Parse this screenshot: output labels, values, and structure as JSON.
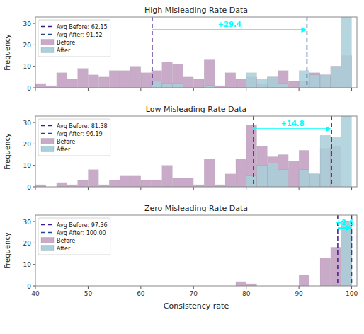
{
  "chart_data": [
    {
      "type": "histogram",
      "title": "High Misleading Rate Data",
      "bins": [
        40,
        42,
        44,
        46,
        48,
        50,
        52,
        54,
        56,
        58,
        60,
        62,
        64,
        66,
        68,
        70,
        72,
        74,
        76,
        78,
        80,
        82,
        84,
        86,
        88,
        90,
        92,
        94,
        96,
        98,
        100
      ],
      "series": [
        {
          "name": "Before",
          "color": "#c9aac9",
          "values": [
            2,
            1,
            7,
            4,
            9,
            6,
            5,
            8,
            8,
            10,
            7,
            8,
            12,
            11,
            5,
            4,
            13,
            1,
            7,
            4,
            5,
            2,
            5,
            8,
            3,
            3,
            7,
            6,
            10,
            15
          ]
        },
        {
          "name": "After",
          "color": "#aad0da",
          "values": [
            0,
            0,
            0,
            0,
            0,
            0,
            0,
            0,
            0,
            0,
            0,
            3,
            2,
            2,
            0,
            0,
            1,
            0,
            0,
            0,
            7,
            4,
            5,
            2,
            0,
            8,
            6,
            6,
            10,
            33
          ]
        }
      ],
      "lines": [
        {
          "label": "Avg Before: 62.15",
          "value": 62.15,
          "color": "#3d1a8c",
          "line_style": "dashed"
        },
        {
          "label": "Avg After: 91.52",
          "value": 91.52,
          "color": "#1a4a8c",
          "line_style": "dashed"
        }
      ],
      "annotations": [
        {
          "text": "+29.4",
          "x_from": 62.15,
          "x_to": 91.52,
          "y": 27,
          "color": "cyan"
        }
      ],
      "xlim": [
        40,
        101
      ],
      "ylim": [
        0,
        33
      ],
      "xticks": [
        40,
        50,
        60,
        70,
        80,
        90,
        100
      ],
      "yticks": [
        0,
        10,
        20,
        30
      ],
      "ylabel": "Frequency",
      "legend": "upper-left",
      "tick_labels": "y"
    },
    {
      "type": "histogram",
      "title": "Low Misleading Rate Data",
      "bins": [
        40,
        42,
        44,
        46,
        48,
        50,
        52,
        54,
        56,
        58,
        60,
        62,
        64,
        66,
        68,
        70,
        72,
        74,
        76,
        78,
        80,
        82,
        84,
        86,
        88,
        90,
        92,
        94,
        96,
        98,
        100
      ],
      "series": [
        {
          "name": "Before",
          "color": "#c9aac9",
          "values": [
            1,
            0,
            2,
            1,
            3,
            8,
            1,
            3,
            5,
            5,
            3,
            3,
            10,
            4,
            4,
            1,
            13,
            1,
            6,
            13,
            29,
            19,
            14,
            15,
            12,
            17,
            6,
            18,
            19,
            0
          ]
        },
        {
          "name": "After",
          "color": "#aad0da",
          "values": [
            0,
            0,
            0,
            0,
            0,
            0,
            0,
            0,
            0,
            0,
            0,
            0,
            0,
            0,
            0,
            0,
            0,
            0,
            0,
            0,
            5,
            10,
            11,
            8,
            0,
            8,
            6,
            24,
            23,
            33
          ]
        }
      ],
      "lines": [
        {
          "label": "Avg Before: 81.38",
          "value": 81.38,
          "color": "#3d1a8c",
          "line_style": "dashed"
        },
        {
          "label": "Avg After: 96.19",
          "value": 96.19,
          "color": "#1a4a8c",
          "line_style": "dashed"
        }
      ],
      "annotations": [
        {
          "text": "+14.8",
          "x_from": 81.38,
          "x_to": 96.19,
          "y": 27,
          "color": "cyan"
        }
      ],
      "xlim": [
        40,
        101
      ],
      "ylim": [
        0,
        33
      ],
      "xticks": [
        40,
        50,
        60,
        70,
        80,
        90,
        100
      ],
      "yticks": [
        0,
        10,
        20,
        30
      ],
      "ylabel": "Frequency",
      "legend": "upper-left",
      "tick_labels": "y"
    },
    {
      "type": "histogram",
      "title": "Zero Misleading Rate Data",
      "bins": [
        40,
        42,
        44,
        46,
        48,
        50,
        52,
        54,
        56,
        58,
        60,
        62,
        64,
        66,
        68,
        70,
        72,
        74,
        76,
        78,
        80,
        82,
        84,
        86,
        88,
        90,
        92,
        94,
        96,
        98,
        100
      ],
      "series": [
        {
          "name": "Before",
          "color": "#c9aac9",
          "values": [
            0,
            0,
            0,
            0,
            0,
            0,
            0,
            0,
            0,
            0,
            0,
            0,
            0,
            0,
            0,
            0,
            0,
            0,
            0,
            2,
            1,
            0,
            0,
            0,
            0,
            5,
            0,
            13,
            18,
            30
          ]
        },
        {
          "name": "After",
          "color": "#aad0da",
          "values": [
            0,
            0,
            0,
            0,
            0,
            0,
            0,
            0,
            0,
            0,
            0,
            0,
            0,
            0,
            0,
            0,
            0,
            0,
            0,
            0,
            0,
            0,
            0,
            0,
            0,
            0,
            0,
            0,
            0,
            30
          ]
        }
      ],
      "lines": [
        {
          "label": "Avg Before: 97.36",
          "value": 97.36,
          "color": "#3d1a8c",
          "line_style": "dashed"
        },
        {
          "label": "Avg After: 100.00",
          "value": 100.0,
          "color": "#1a4a8c",
          "line_style": "dashed"
        }
      ],
      "annotations": [
        {
          "text": "+2.6",
          "x_from": 97.36,
          "x_to": 100.0,
          "y": 27,
          "color": "cyan"
        }
      ],
      "xlim": [
        40,
        101
      ],
      "ylim": [
        0,
        33
      ],
      "xticks": [
        40,
        50,
        60,
        70,
        80,
        90,
        100
      ],
      "yticks": [
        0,
        10,
        20,
        30
      ],
      "xlabel": "Consistency rate",
      "ylabel": "Frequency",
      "legend": "upper-left"
    }
  ]
}
